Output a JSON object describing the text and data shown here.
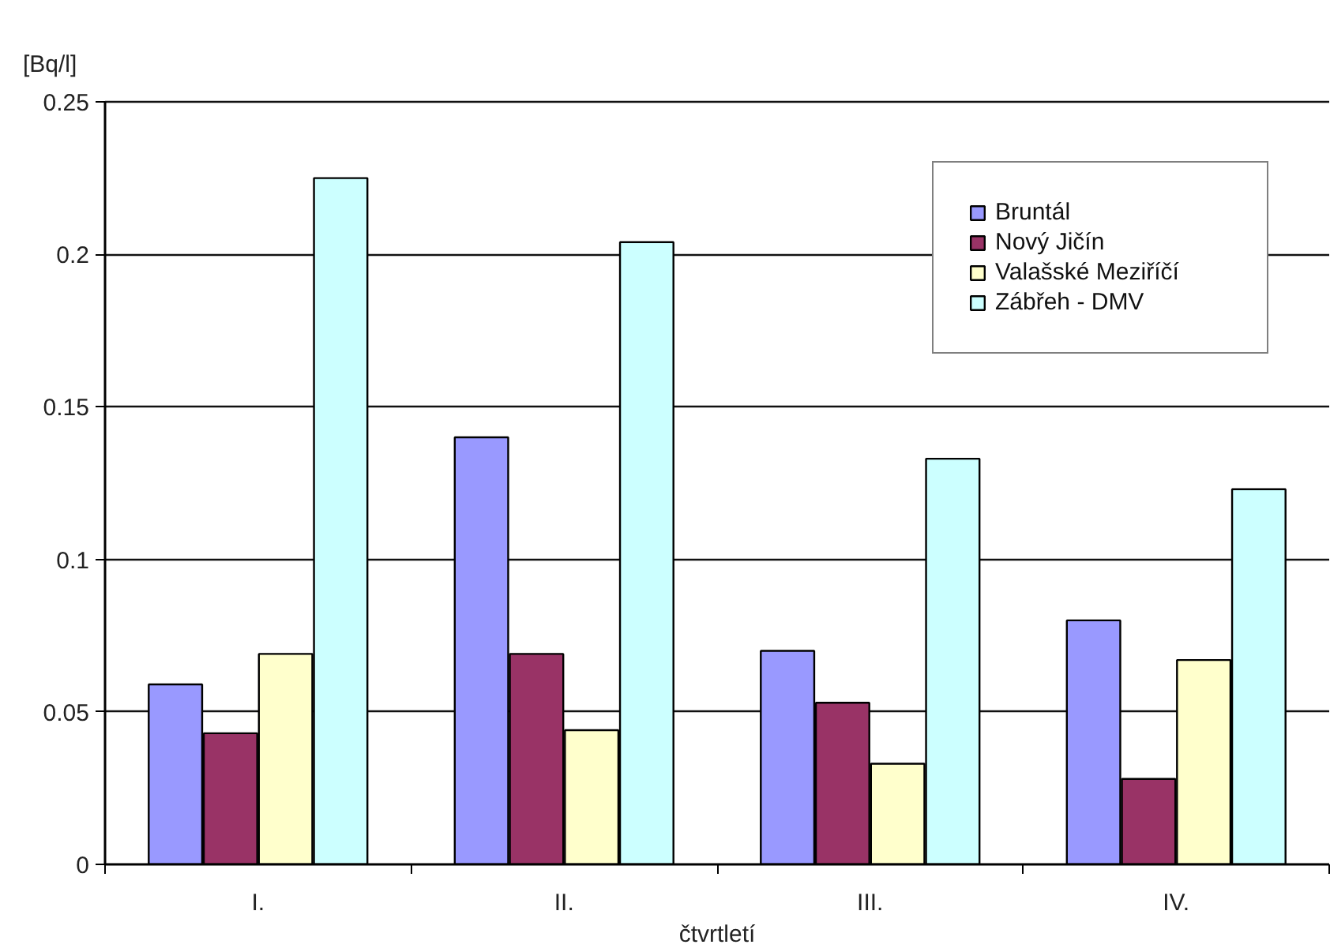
{
  "chart_data": {
    "type": "bar",
    "ylabel": "[Bq/l]",
    "xlabel": "čtvrtletí",
    "categories": [
      "I.",
      "II.",
      "III.",
      "IV."
    ],
    "series": [
      {
        "name": "Bruntál",
        "color": "#9999ff",
        "values": [
          0.059,
          0.14,
          0.07,
          0.08
        ]
      },
      {
        "name": "Nový Jičín",
        "color": "#993366",
        "values": [
          0.043,
          0.069,
          0.053,
          0.028
        ]
      },
      {
        "name": "Valašské Meziříčí",
        "color": "#ffffcc",
        "values": [
          0.069,
          0.044,
          0.033,
          0.067
        ]
      },
      {
        "name": "Zábřeh - DMV",
        "color": "#ccffff",
        "values": [
          0.225,
          0.204,
          0.133,
          0.123
        ]
      }
    ],
    "ylim": [
      0,
      0.25
    ],
    "yticks": [
      0,
      0.05,
      0.1,
      0.15,
      0.2,
      0.25
    ],
    "grid": "y",
    "legend": "top right"
  }
}
